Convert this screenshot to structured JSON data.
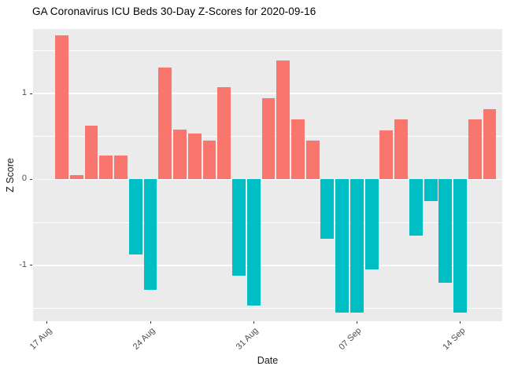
{
  "chart_data": {
    "type": "bar",
    "title": "GA Coronavirus ICU Beds 30-Day Z-Scores for 2020-09-16",
    "xlabel": "Date",
    "ylabel": "Z Score",
    "ylim": [
      -1.65,
      1.75
    ],
    "x_domain": [
      -0.95,
      30.85
    ],
    "bar_width_units": 0.9,
    "y_major_ticks": [
      -1,
      0,
      1
    ],
    "y_minor_ticks": [
      -1.5,
      -0.5,
      0.5,
      1.5
    ],
    "x_ticks": [
      {
        "label": "17 Aug",
        "pos": 0
      },
      {
        "label": "24 Aug",
        "pos": 7
      },
      {
        "label": "31 Aug",
        "pos": 14
      },
      {
        "label": "07 Sep",
        "pos": 21
      },
      {
        "label": "14 Sep",
        "pos": 28
      }
    ],
    "categories": [
      "18 Aug",
      "19 Aug",
      "20 Aug",
      "21 Aug",
      "22 Aug",
      "23 Aug",
      "24 Aug",
      "25 Aug",
      "26 Aug",
      "27 Aug",
      "28 Aug",
      "29 Aug",
      "30 Aug",
      "31 Aug",
      "01 Sep",
      "02 Sep",
      "03 Sep",
      "04 Sep",
      "05 Sep",
      "06 Sep",
      "07 Sep",
      "08 Sep",
      "09 Sep",
      "10 Sep",
      "11 Sep",
      "12 Sep",
      "13 Sep",
      "14 Sep",
      "15 Sep",
      "16 Sep"
    ],
    "values": [
      1.68,
      0.05,
      0.63,
      0.28,
      0.28,
      -0.87,
      -1.28,
      1.3,
      0.58,
      0.53,
      0.45,
      1.07,
      -1.12,
      -1.47,
      0.95,
      1.38,
      0.7,
      0.45,
      -0.69,
      -1.55,
      -1.55,
      -1.05,
      0.57,
      0.7,
      -0.65,
      -0.25,
      -1.2,
      -1.55,
      0.7,
      0.82
    ],
    "legend": "none",
    "grid": "on",
    "colors": {
      "positive": "#F8766D",
      "negative": "#00BFC4",
      "panel_background": "#EBEBEB",
      "gridline": "#FFFFFF",
      "axis_text": "#4D4D4D",
      "title_text": "#000000"
    }
  }
}
